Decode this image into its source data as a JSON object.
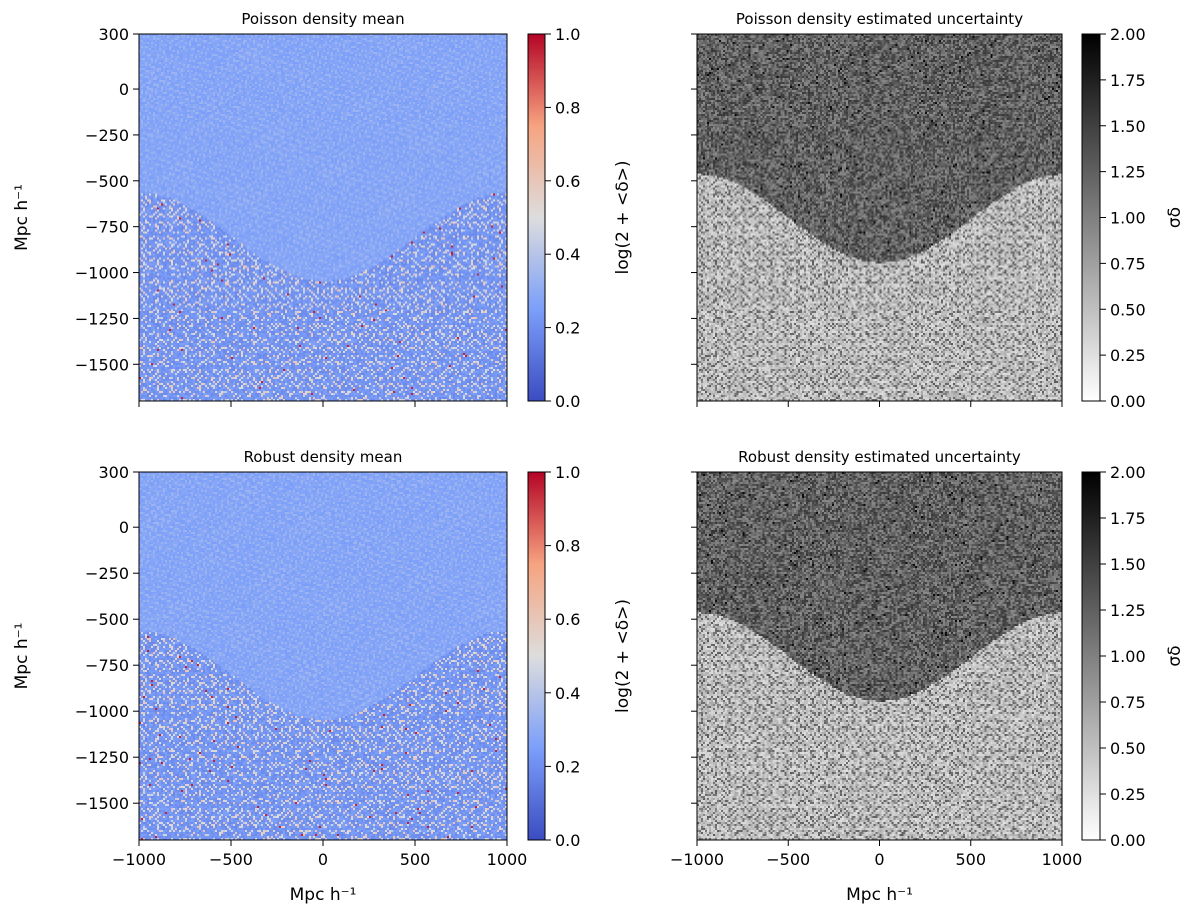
{
  "chart_data": [
    {
      "type": "heatmap",
      "title": "Poisson density mean",
      "xlabel": "",
      "ylabel": "Mpc h⁻¹",
      "xlim": [
        -1000,
        1000
      ],
      "ylim": [
        -1700,
        300
      ],
      "xticks": [],
      "yticks": [
        "300",
        "0",
        "−250",
        "−500",
        "−750",
        "−1000",
        "−1250",
        "−1500"
      ],
      "yticks_values": [
        300,
        0,
        -250,
        -500,
        -750,
        -1000,
        -1250,
        -1500
      ],
      "colormap": "coolwarm",
      "colorbar": {
        "label": "log(2 + <δ>)",
        "range": [
          0.0,
          1.0
        ],
        "ticks": [
          "0.0",
          "0.2",
          "0.4",
          "0.6",
          "0.8",
          "1.0"
        ],
        "tick_values": [
          0.0,
          0.2,
          0.4,
          0.6,
          0.8,
          1.0
        ]
      }
    },
    {
      "type": "heatmap",
      "title": "Poisson density estimated uncertainty",
      "xlabel": "",
      "ylabel": "",
      "xlim": [
        -1000,
        1000
      ],
      "ylim": [
        -1700,
        300
      ],
      "xticks": [],
      "yticks": [],
      "colormap": "gray_r",
      "colorbar": {
        "label": "σδ",
        "range": [
          0.0,
          2.0
        ],
        "ticks": [
          "0.00",
          "0.25",
          "0.50",
          "0.75",
          "1.00",
          "1.25",
          "1.50",
          "1.75",
          "2.00"
        ],
        "tick_values": [
          0.0,
          0.25,
          0.5,
          0.75,
          1.0,
          1.25,
          1.5,
          1.75,
          2.0
        ]
      }
    },
    {
      "type": "heatmap",
      "title": "Robust density mean",
      "xlabel": "Mpc h⁻¹",
      "ylabel": "Mpc h⁻¹",
      "xlim": [
        -1000,
        1000
      ],
      "ylim": [
        -1700,
        300
      ],
      "xticks": [
        "−1000",
        "−500",
        "0",
        "500",
        "1000"
      ],
      "xticks_values": [
        -1000,
        -500,
        0,
        500,
        1000
      ],
      "yticks": [
        "300",
        "0",
        "−250",
        "−500",
        "−750",
        "−1000",
        "−1250",
        "−1500"
      ],
      "yticks_values": [
        300,
        0,
        -250,
        -500,
        -750,
        -1000,
        -1250,
        -1500
      ],
      "colormap": "coolwarm",
      "colorbar": {
        "label": "log(2 + <δ>)",
        "range": [
          0.0,
          1.0
        ],
        "ticks": [
          "0.0",
          "0.2",
          "0.4",
          "0.6",
          "0.8",
          "1.0"
        ],
        "tick_values": [
          0.0,
          0.2,
          0.4,
          0.6,
          0.8,
          1.0
        ]
      }
    },
    {
      "type": "heatmap",
      "title": "Robust density estimated uncertainty",
      "xlabel": "Mpc h⁻¹",
      "ylabel": "",
      "xlim": [
        -1000,
        1000
      ],
      "ylim": [
        -1700,
        300
      ],
      "xticks": [
        "−1000",
        "−500",
        "0",
        "500",
        "1000"
      ],
      "xticks_values": [
        -1000,
        -500,
        0,
        500,
        1000
      ],
      "yticks": [],
      "colormap": "gray_r",
      "colorbar": {
        "label": "σδ",
        "range": [
          0.0,
          2.0
        ],
        "ticks": [
          "0.00",
          "0.25",
          "0.50",
          "0.75",
          "1.00",
          "1.25",
          "1.50",
          "1.75",
          "2.00"
        ],
        "tick_values": [
          0.0,
          0.25,
          0.5,
          0.75,
          1.0,
          1.25,
          1.5,
          1.75,
          2.0
        ]
      }
    }
  ]
}
